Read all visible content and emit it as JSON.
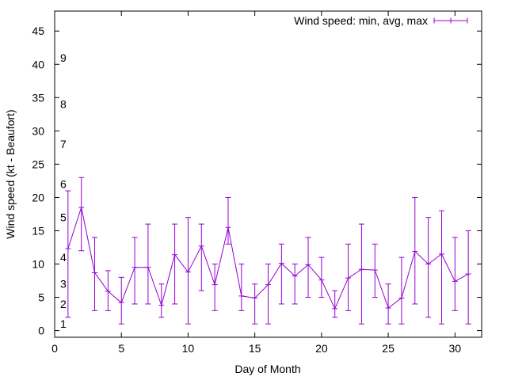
{
  "chart_data": {
    "type": "line",
    "title": "",
    "xlabel": "Day of Month",
    "ylabel": "Wind speed (kt - Beaufort)",
    "xlim": [
      0,
      32
    ],
    "ylim": [
      -1,
      48
    ],
    "xticks": [
      0,
      5,
      10,
      15,
      20,
      25,
      30
    ],
    "yticks": [
      0,
      5,
      10,
      15,
      20,
      25,
      30,
      35,
      40,
      45
    ],
    "grid": false,
    "legend": "top-right",
    "beaufort_labels": [
      {
        "label": "1",
        "y": 1
      },
      {
        "label": "2",
        "y": 4
      },
      {
        "label": "3",
        "y": 7
      },
      {
        "label": "4",
        "y": 11
      },
      {
        "label": "5",
        "y": 17
      },
      {
        "label": "6",
        "y": 22
      },
      {
        "label": "7",
        "y": 28
      },
      {
        "label": "8",
        "y": 34
      },
      {
        "label": "9",
        "y": 41
      }
    ],
    "series": [
      {
        "name": "Wind speed: min, avg, max",
        "color": "#9400d3",
        "x": [
          1,
          2,
          3,
          4,
          5,
          6,
          7,
          8,
          9,
          10,
          11,
          12,
          13,
          14,
          15,
          16,
          17,
          18,
          19,
          20,
          21,
          22,
          23,
          24,
          25,
          26,
          27,
          28,
          29,
          30,
          31
        ],
        "avg": [
          12.3,
          18.5,
          8.7,
          5.9,
          4.2,
          9.5,
          9.5,
          3.8,
          11.4,
          8.8,
          12.7,
          6.9,
          15.5,
          5.2,
          4.9,
          6.9,
          10.1,
          8.2,
          9.9,
          7.6,
          3.3,
          7.9,
          9.2,
          9.1,
          3.4,
          4.9,
          11.9,
          10.0,
          11.5,
          7.4,
          8.5
        ],
        "min": [
          2,
          12,
          3,
          3,
          1,
          4,
          4,
          2,
          4,
          1,
          6,
          3,
          13,
          3,
          1,
          1,
          4,
          4,
          5,
          5,
          2,
          3,
          1,
          5,
          1,
          1,
          4,
          2,
          1,
          3,
          1
        ],
        "max": [
          21,
          23,
          14,
          9,
          8,
          14,
          16,
          7,
          16,
          17,
          16,
          10,
          20,
          10,
          7,
          10,
          13,
          10,
          14,
          11,
          6,
          13,
          16,
          13,
          7,
          11,
          20,
          17,
          18,
          14,
          15
        ]
      }
    ]
  }
}
